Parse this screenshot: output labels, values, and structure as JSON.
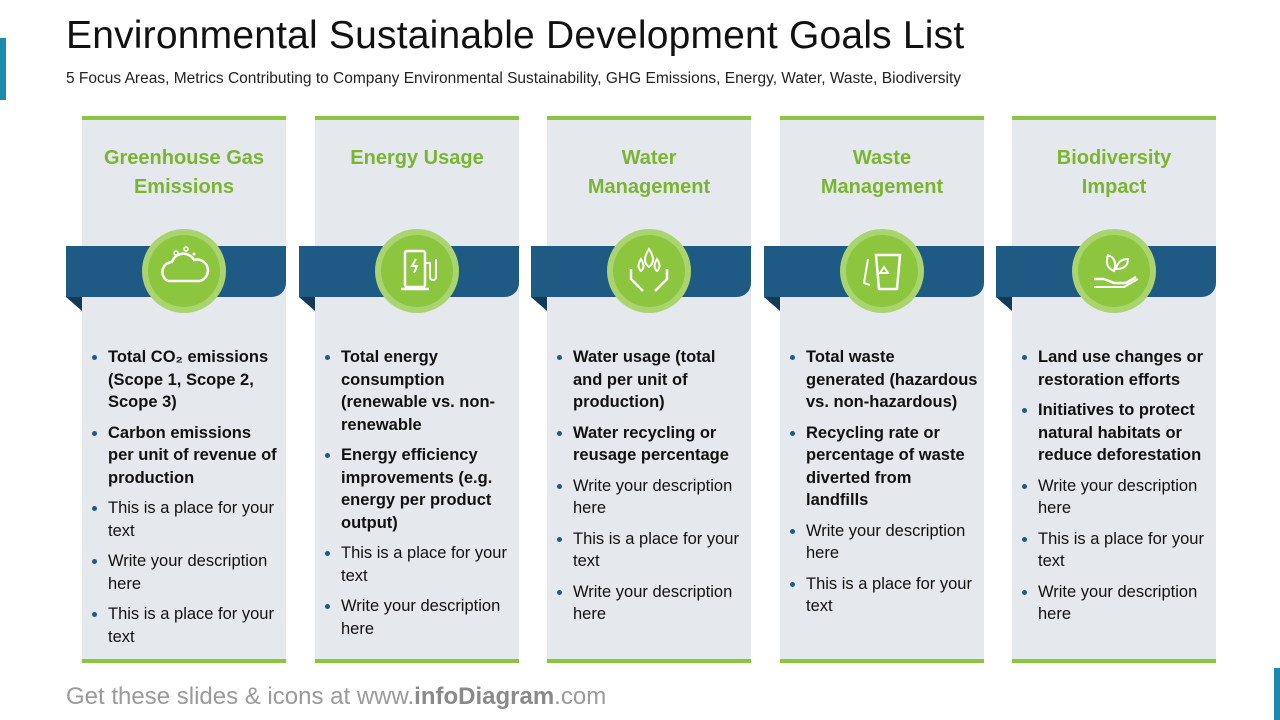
{
  "header": {
    "title": "Environmental Sustainable Development Goals List",
    "subtitle": "5 Focus Areas, Metrics Contributing to Company Environmental Sustainability, GHG Emissions, Energy, Water, Waste, Biodiversity"
  },
  "columns": [
    {
      "title": "Greenhouse Gas Emissions",
      "metrics": [
        "Total CO₂ emissions (Scope 1, Scope 2, Scope 3)",
        "Carbon emissions per unit of revenue of production"
      ],
      "placeholders": [
        "This is a place for your text",
        "Write your description here",
        "This is a place for your text"
      ]
    },
    {
      "title": "Energy Usage",
      "metrics": [
        "Total energy consumption (renewable vs. non-renewable",
        "Energy efficiency improvements (e.g. energy per product output)"
      ],
      "placeholders": [
        "This is a place for your text",
        "Write your description here"
      ]
    },
    {
      "title": "Water Management",
      "metrics": [
        "Water usage (total and per unit of production)",
        "Water recycling or reusage percentage"
      ],
      "placeholders": [
        "Write your description here",
        "This is a place for your text",
        "Write your description here"
      ]
    },
    {
      "title": "Waste Management",
      "metrics": [
        "Total waste generated (hazardous vs. non-hazardous)",
        "Recycling rate or percentage of waste diverted from landfills"
      ],
      "placeholders": [
        "Write your description here",
        "This is a place for your text"
      ]
    },
    {
      "title": "Biodiversity Impact",
      "metrics": [
        "Land use changes or restoration efforts",
        "Initiatives to protect natural habitats or reduce deforestation"
      ],
      "placeholders": [
        "Write your description here",
        "This is a place for your text",
        "Write your description here"
      ]
    }
  ],
  "footer": [
    "Get these slides & icons at www.",
    "infoDiagram",
    ".com"
  ]
}
